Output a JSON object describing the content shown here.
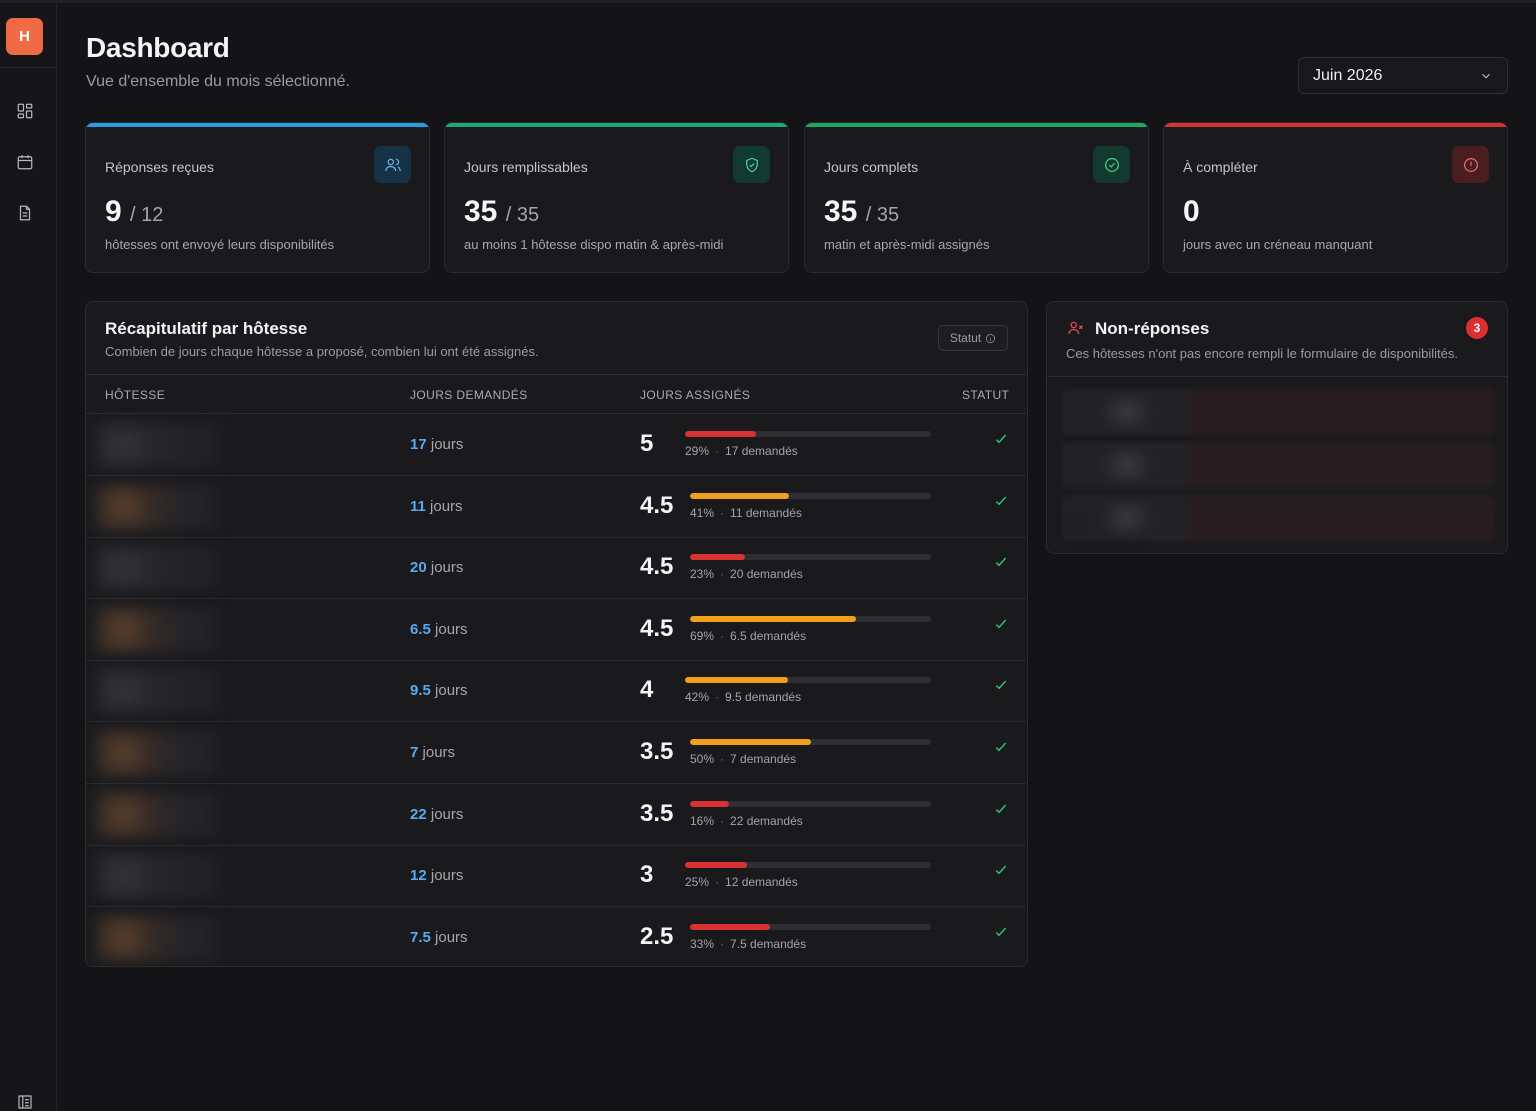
{
  "app": {
    "logo_letter": "H"
  },
  "header": {
    "title": "Dashboard",
    "subtitle": "Vue d'ensemble du mois sélectionné.",
    "month": "Juin 2026"
  },
  "sidebar": {
    "items": [
      {
        "icon": "dashboard-icon"
      },
      {
        "icon": "calendar-icon"
      },
      {
        "icon": "document-icon"
      },
      {
        "icon": "collapse-sidebar-icon"
      }
    ]
  },
  "stats": [
    {
      "label": "Réponses reçues",
      "value": "9",
      "of": "/ 12",
      "desc": "hôtesses ont envoyé leurs disponibilités",
      "accent": "#2d9be5",
      "icon": "users-icon"
    },
    {
      "label": "Jours remplissables",
      "value": "35",
      "of": "/ 35",
      "desc": "au moins 1 hôtesse dispo matin & après-midi",
      "accent": "#1fa77a",
      "icon": "shield-check-icon"
    },
    {
      "label": "Jours complets",
      "value": "35",
      "of": "/ 35",
      "desc": "matin et après-midi assignés",
      "accent": "#1ea864",
      "icon": "check-circle-icon"
    },
    {
      "label": "À compléter",
      "value": "0",
      "of": "",
      "desc": "jours avec un créneau manquant",
      "accent": "#d23434",
      "icon": "alert-circle-icon"
    }
  ],
  "recap": {
    "title": "Récapitulatif par hôtesse",
    "subtitle": "Combien de jours chaque hôtesse a proposé, combien lui ont été assignés.",
    "statut_button": "Statut",
    "columns": [
      "HÔTESSE",
      "JOURS DEMANDÉS",
      "JOURS ASSIGNÉS",
      "STATUT"
    ],
    "rows": [
      {
        "requested": "17",
        "unit": "jours",
        "assigned": "5",
        "pct": 0.29,
        "pct_label": "29%",
        "meta": "17 demandés",
        "color": "#d83232",
        "warm": false
      },
      {
        "requested": "11",
        "unit": "jours",
        "assigned": "4.5",
        "pct": 0.41,
        "pct_label": "41%",
        "meta": "11 demandés",
        "color": "#f0a01c",
        "warm": true
      },
      {
        "requested": "20",
        "unit": "jours",
        "assigned": "4.5",
        "pct": 0.23,
        "pct_label": "23%",
        "meta": "20 demandés",
        "color": "#d83232",
        "warm": false
      },
      {
        "requested": "6.5",
        "unit": "jours",
        "assigned": "4.5",
        "pct": 0.69,
        "pct_label": "69%",
        "meta": "6.5 demandés",
        "color": "#f0a01c",
        "warm": true
      },
      {
        "requested": "9.5",
        "unit": "jours",
        "assigned": "4",
        "pct": 0.42,
        "pct_label": "42%",
        "meta": "9.5 demandés",
        "color": "#f0a01c",
        "warm": false
      },
      {
        "requested": "7",
        "unit": "jours",
        "assigned": "3.5",
        "pct": 0.5,
        "pct_label": "50%",
        "meta": "7 demandés",
        "color": "#f0a01c",
        "warm": true
      },
      {
        "requested": "22",
        "unit": "jours",
        "assigned": "3.5",
        "pct": 0.16,
        "pct_label": "16%",
        "meta": "22 demandés",
        "color": "#d83232",
        "warm": true
      },
      {
        "requested": "12",
        "unit": "jours",
        "assigned": "3",
        "pct": 0.25,
        "pct_label": "25%",
        "meta": "12 demandés",
        "color": "#d83232",
        "warm": false
      },
      {
        "requested": "7.5",
        "unit": "jours",
        "assigned": "2.5",
        "pct": 0.33,
        "pct_label": "33%",
        "meta": "7.5 demandés",
        "color": "#d83232",
        "warm": true
      }
    ]
  },
  "nonresponses": {
    "title": "Non-réponses",
    "subtitle": "Ces hôtesses n'ont pas encore rempli le formulaire de disponibilités.",
    "count": "3"
  }
}
